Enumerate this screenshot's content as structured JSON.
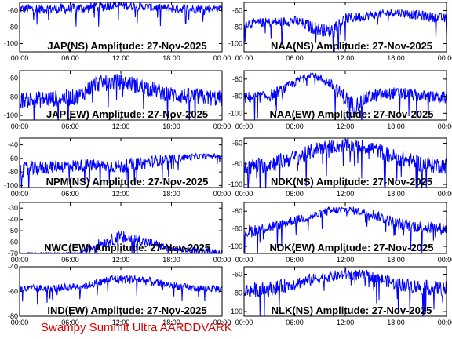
{
  "figure": {
    "footer": "Swampy Summit Ultra AARDDVARK",
    "footer_color": "#dd0000",
    "trace_color": "#0000ff"
  },
  "chart_data": [
    {
      "type": "line",
      "title": "JAP(NS) Amplitude: 27-Nov-2025",
      "ylim": [
        -110,
        -50
      ],
      "yticks": [
        -60,
        -80,
        -100
      ],
      "xticks": [
        "00:00",
        "06:00",
        "12:00",
        "18:00",
        "00:00"
      ],
      "profile": [
        [
          0,
          -58,
          6
        ],
        [
          6,
          -58,
          6
        ],
        [
          9,
          -56,
          7
        ],
        [
          11,
          -53,
          6
        ],
        [
          14,
          -55,
          5
        ],
        [
          17,
          -57,
          5
        ],
        [
          20,
          -58,
          6
        ],
        [
          24,
          -57,
          4
        ]
      ]
    },
    {
      "type": "line",
      "title": "NAA(NS) Amplitude: 27-Nov-2025",
      "ylim": [
        -110,
        -50
      ],
      "yticks": [
        -60,
        -80,
        -100
      ],
      "xticks": [
        "00:00",
        "06:00",
        "12:00",
        "18:00",
        "00:00"
      ],
      "profile": [
        [
          0,
          -76,
          6
        ],
        [
          4,
          -74,
          6
        ],
        [
          6,
          -72,
          6
        ],
        [
          8,
          -80,
          8
        ],
        [
          10,
          -85,
          8
        ],
        [
          12,
          -70,
          7
        ],
        [
          15,
          -66,
          5
        ],
        [
          18,
          -62,
          5
        ],
        [
          21,
          -66,
          6
        ],
        [
          24,
          -70,
          6
        ]
      ]
    },
    {
      "type": "line",
      "title": "JAP(EW) Amplitude: 27-Nov-2025",
      "ylim": [
        -105,
        -52
      ],
      "yticks": [
        -60,
        -80,
        -100
      ],
      "xticks": [
        "00:00",
        "06:00",
        "12:00",
        "18:00",
        "00:00"
      ],
      "profile": [
        [
          0,
          -84,
          9
        ],
        [
          4,
          -82,
          9
        ],
        [
          7,
          -80,
          9
        ],
        [
          9,
          -66,
          9
        ],
        [
          12,
          -64,
          9
        ],
        [
          15,
          -70,
          9
        ],
        [
          18,
          -78,
          9
        ],
        [
          21,
          -80,
          9
        ],
        [
          24,
          -82,
          9
        ]
      ]
    },
    {
      "type": "line",
      "title": "NAA(EW) Amplitude: 27-Nov-2025",
      "ylim": [
        -108,
        -50
      ],
      "yticks": [
        -60,
        -80,
        -100
      ],
      "xticks": [
        "00:00",
        "06:00",
        "12:00",
        "18:00",
        "00:00"
      ],
      "profile": [
        [
          0,
          -82,
          7
        ],
        [
          3,
          -80,
          7
        ],
        [
          5,
          -70,
          6
        ],
        [
          7,
          -58,
          4
        ],
        [
          8,
          -54,
          3
        ],
        [
          10,
          -64,
          6
        ],
        [
          12,
          -82,
          10
        ],
        [
          13,
          -92,
          10
        ],
        [
          15,
          -80,
          8
        ],
        [
          18,
          -76,
          7
        ],
        [
          21,
          -80,
          7
        ],
        [
          24,
          -82,
          7
        ]
      ]
    },
    {
      "type": "line",
      "title": "NPM(NS) Amplitude: 27-Nov-2025",
      "ylim": [
        -103,
        -30
      ],
      "yticks": [
        -40,
        -60,
        -80,
        -100
      ],
      "xticks": [
        "00:00",
        "06:00",
        "12:00",
        "18:00",
        "00:00"
      ],
      "profile": [
        [
          0,
          -78,
          12
        ],
        [
          4,
          -72,
          10
        ],
        [
          8,
          -70,
          9
        ],
        [
          12,
          -72,
          10
        ],
        [
          16,
          -64,
          9
        ],
        [
          20,
          -58,
          5
        ],
        [
          24,
          -56,
          3
        ]
      ]
    },
    {
      "type": "line",
      "title": "NDK(NS) Amplitude: 27-Nov-2025",
      "ylim": [
        -103,
        -55
      ],
      "yticks": [
        -60,
        -80,
        -100
      ],
      "xticks": [
        "00:00",
        "06:00",
        "12:00",
        "18:00",
        "00:00"
      ],
      "profile": [
        [
          0,
          -84,
          8
        ],
        [
          3,
          -80,
          8
        ],
        [
          5,
          -76,
          8
        ],
        [
          7,
          -72,
          8
        ],
        [
          9,
          -64,
          7
        ],
        [
          12,
          -62,
          7
        ],
        [
          15,
          -64,
          7
        ],
        [
          18,
          -74,
          8
        ],
        [
          21,
          -80,
          8
        ],
        [
          24,
          -82,
          8
        ]
      ]
    },
    {
      "type": "line",
      "title": "NWC(EW) Amplitude: 27-Nov-2025",
      "ylim": [
        -70,
        -25
      ],
      "yticks": [
        -30,
        -40,
        -50,
        -60,
        -70
      ],
      "xticks": [
        "00:00",
        "06:00",
        "12:00",
        "18:00",
        "00:00"
      ],
      "profile": [
        [
          0,
          -70,
          1
        ],
        [
          7,
          -70,
          1
        ],
        [
          8,
          -66,
          3
        ],
        [
          10,
          -60,
          5
        ],
        [
          12,
          -56,
          6
        ],
        [
          14,
          -58,
          5
        ],
        [
          16,
          -62,
          4
        ],
        [
          18,
          -66,
          3
        ],
        [
          20,
          -67,
          3
        ],
        [
          24,
          -68,
          2
        ]
      ]
    },
    {
      "type": "line",
      "title": "NDK(EW) Amplitude: 27-Nov-2025",
      "ylim": [
        -108,
        -50
      ],
      "yticks": [
        -60,
        -80,
        -100
      ],
      "xticks": [
        "00:00",
        "06:00",
        "12:00",
        "18:00",
        "00:00"
      ],
      "profile": [
        [
          0,
          -84,
          8
        ],
        [
          2,
          -80,
          7
        ],
        [
          4,
          -76,
          6
        ],
        [
          6,
          -70,
          5
        ],
        [
          8,
          -66,
          5
        ],
        [
          10,
          -60,
          5
        ],
        [
          12,
          -58,
          4
        ],
        [
          15,
          -62,
          5
        ],
        [
          18,
          -74,
          7
        ],
        [
          21,
          -78,
          7
        ],
        [
          24,
          -80,
          7
        ]
      ]
    },
    {
      "type": "line",
      "title": "IND(EW) Amplitude: 27-Nov-2025",
      "ylim": [
        -80,
        -40
      ],
      "yticks": [
        -40,
        -60,
        -80
      ],
      "xticks": [
        "00:00",
        "06:00",
        "12:00",
        "18:00",
        "00:00"
      ],
      "profile": [
        [
          0,
          -58,
          3
        ],
        [
          5,
          -57,
          3
        ],
        [
          8,
          -55,
          3
        ],
        [
          11,
          -50,
          4
        ],
        [
          14,
          -50,
          4
        ],
        [
          17,
          -54,
          3
        ],
        [
          20,
          -57,
          3
        ],
        [
          24,
          -58,
          3
        ]
      ]
    },
    {
      "type": "line",
      "title": "NLK(NS) Amplitude: 27-Nov-2025",
      "ylim": [
        -105,
        -52
      ],
      "yticks": [
        -60,
        -80,
        -100
      ],
      "xticks": [
        "00:00",
        "06:00",
        "12:00",
        "18:00",
        "00:00"
      ],
      "profile": [
        [
          0,
          -78,
          8
        ],
        [
          3,
          -76,
          8
        ],
        [
          6,
          -70,
          7
        ],
        [
          9,
          -64,
          6
        ],
        [
          12,
          -60,
          6
        ],
        [
          15,
          -62,
          6
        ],
        [
          18,
          -70,
          7
        ],
        [
          21,
          -74,
          8
        ],
        [
          24,
          -76,
          8
        ]
      ]
    }
  ]
}
